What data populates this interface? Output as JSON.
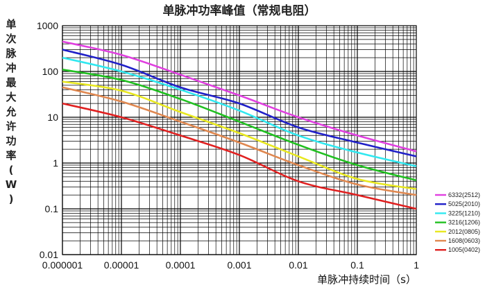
{
  "chart_data": {
    "type": "line",
    "title": "单脉冲功率峰值（常规电阻）",
    "ylabel": "单次脉冲最大允许功率(W)",
    "xlabel": "单脉冲持续时间（s）",
    "x_scale": "log",
    "y_scale": "log",
    "xlim": [
      1e-06,
      1
    ],
    "ylim": [
      0.01,
      1000
    ],
    "x_ticks": [
      "0.000001",
      "0.00001",
      "0.0001",
      "0.001",
      "0.01",
      "0.1",
      "1"
    ],
    "y_ticks": [
      "1000",
      "100",
      "10",
      "1",
      "0.1",
      "0.01"
    ],
    "grid": true,
    "legend_position": "bottom-right",
    "series": [
      {
        "name": "6332(2512)",
        "color": "#e040e0",
        "x": [
          1e-06,
          1e-05,
          0.0001,
          0.001,
          0.01,
          0.1,
          1
        ],
        "y": [
          450,
          230,
          85,
          30,
          10,
          4,
          1.8
        ]
      },
      {
        "name": "5025(2010)",
        "color": "#2020c8",
        "x": [
          1e-06,
          1e-05,
          0.0001,
          0.001,
          0.01,
          0.1,
          1
        ],
        "y": [
          300,
          140,
          45,
          20,
          6,
          2.8,
          1.4
        ]
      },
      {
        "name": "3225(1210)",
        "color": "#30e8f0",
        "x": [
          1e-06,
          1e-05,
          0.0001,
          0.001,
          0.01,
          0.1,
          1
        ],
        "y": [
          200,
          100,
          40,
          14,
          4,
          1.7,
          0.85
        ]
      },
      {
        "name": "3216(1206)",
        "color": "#20c020",
        "x": [
          1e-06,
          1e-05,
          0.0001,
          0.001,
          0.01,
          0.1,
          1
        ],
        "y": [
          110,
          65,
          25,
          8,
          2.5,
          0.9,
          0.42
        ]
      },
      {
        "name": "2012(0805)",
        "color": "#e8e820",
        "x": [
          1e-06,
          1e-05,
          0.0001,
          0.001,
          0.01,
          0.1,
          1
        ],
        "y": [
          60,
          38,
          13,
          4.5,
          1.4,
          0.45,
          0.27
        ]
      },
      {
        "name": "1608(0603)",
        "color": "#e08850",
        "x": [
          1e-06,
          1e-05,
          0.0001,
          0.001,
          0.01,
          0.1,
          1
        ],
        "y": [
          45,
          22,
          8,
          2.8,
          0.9,
          0.34,
          0.2
        ]
      },
      {
        "name": "1005(0402)",
        "color": "#e02020",
        "x": [
          1e-06,
          1e-05,
          0.0001,
          0.001,
          0.01,
          0.1,
          1
        ],
        "y": [
          20,
          10,
          4,
          1.5,
          0.4,
          0.2,
          0.1
        ]
      }
    ]
  }
}
